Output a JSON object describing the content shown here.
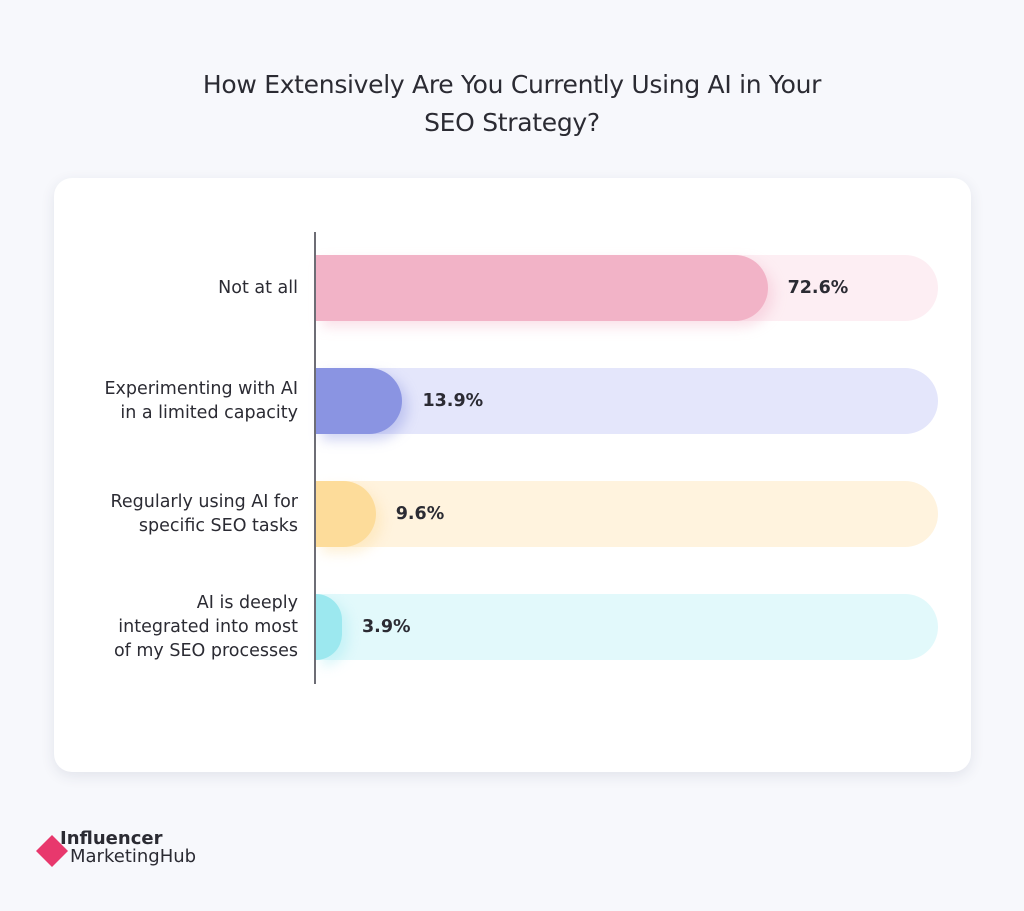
{
  "chart_data": {
    "type": "bar",
    "orientation": "horizontal",
    "title": "How Extensively Are You Currently Using AI in Your SEO Strategy?",
    "title_lines": [
      "How Extensively Are You Currently Using AI in Your",
      "SEO Strategy?"
    ],
    "categories": [
      "Not at all",
      "Experimenting with AI in a limited capacity",
      "Regularly using AI for specific SEO tasks",
      "AI is deeply integrated into most of my SEO processes"
    ],
    "category_lines": [
      [
        "Not at all"
      ],
      [
        "Experimenting with AI",
        "in a limited capacity"
      ],
      [
        "Regularly using AI for",
        "specific SEO tasks"
      ],
      [
        "AI is deeply",
        "integrated into most",
        "of my SEO processes"
      ]
    ],
    "values": [
      72.6,
      13.9,
      9.6,
      3.9
    ],
    "value_labels": [
      "72.6%",
      "13.9%",
      "9.6%",
      "3.9%"
    ],
    "unit": "%",
    "xlim": [
      0,
      100
    ],
    "grid": false,
    "legend": "none",
    "colors": {
      "fills": [
        "#f2b3c7",
        "#8a94e2",
        "#fddc9a",
        "#9ce8ef"
      ],
      "tracks": [
        "#fdeef3",
        "#e4e6fb",
        "#fff3de",
        "#e2f9fb"
      ]
    }
  },
  "branding": {
    "logo_top": "Influencer",
    "logo_bottom": "MarketingHub",
    "logo_color": "#e8386d"
  }
}
